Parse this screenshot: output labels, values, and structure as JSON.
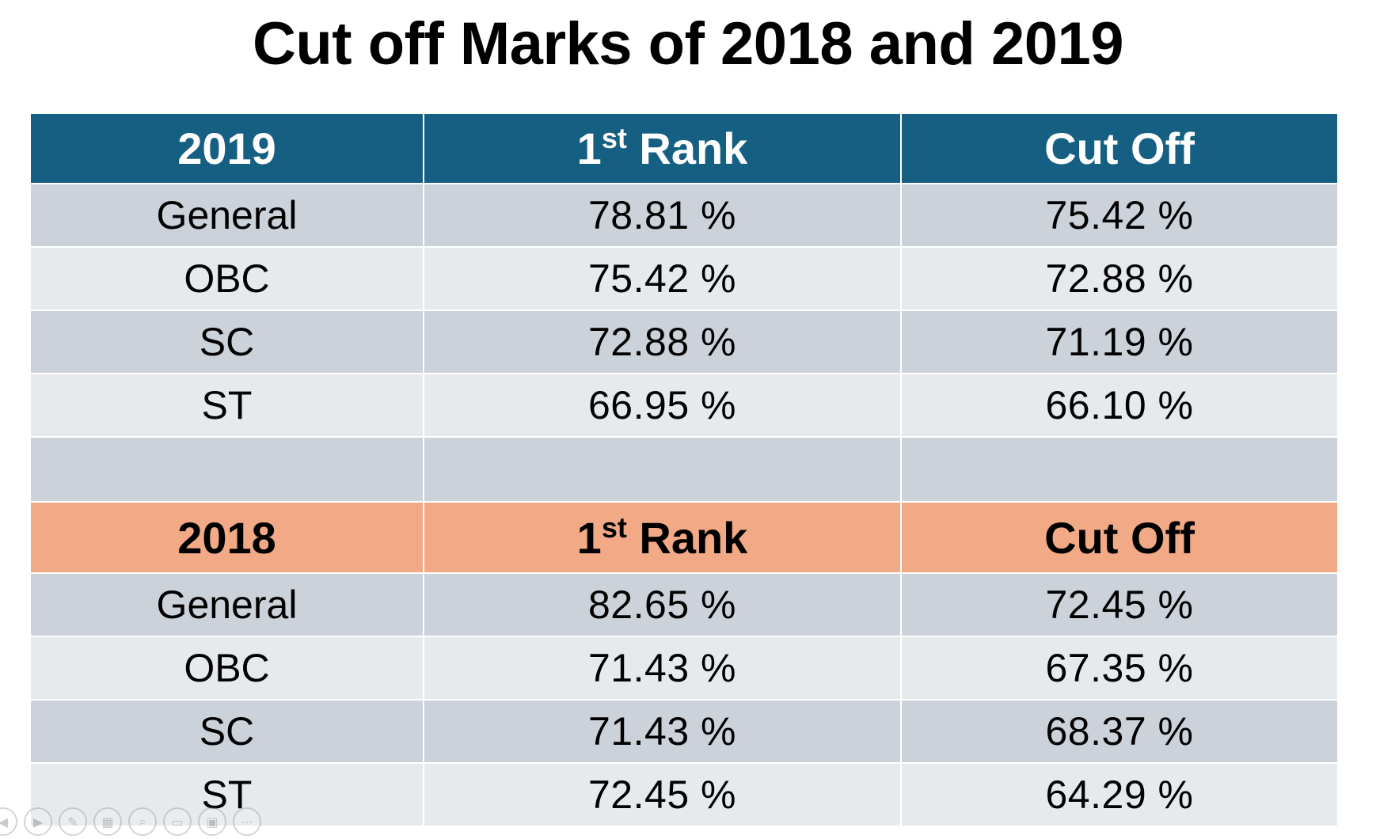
{
  "title": "Cut off Marks of 2018 and 2019",
  "colors": {
    "header_2019": "#156082",
    "header_2018": "#f2a985",
    "row_dark": "#ccd2da",
    "row_light": "#e7eaed"
  },
  "tables": [
    {
      "year": "2019",
      "header": {
        "rank_main": "1",
        "rank_sup": "st",
        "rank_text": " Rank",
        "cutoff": "Cut Off"
      },
      "rows": [
        {
          "category": "General",
          "first_rank": "78.81 %",
          "cut_off": "75.42 %"
        },
        {
          "category": "OBC",
          "first_rank": "75.42 %",
          "cut_off": "72.88 %"
        },
        {
          "category": "SC",
          "first_rank": "72.88 %",
          "cut_off": "71.19 %"
        },
        {
          "category": "ST",
          "first_rank": "66.95 %",
          "cut_off": "66.10 %"
        }
      ]
    },
    {
      "year": "2018",
      "header": {
        "rank_main": "1",
        "rank_sup": "st",
        "rank_text": " Rank",
        "cutoff": "Cut Off"
      },
      "rows": [
        {
          "category": "General",
          "first_rank": "82.65 %",
          "cut_off": "72.45 %"
        },
        {
          "category": "OBC",
          "first_rank": "71.43 %",
          "cut_off": "67.35 %"
        },
        {
          "category": "SC",
          "first_rank": "71.43 %",
          "cut_off": "68.37 %"
        },
        {
          "category": "ST",
          "first_rank": "72.45 %",
          "cut_off": "64.29 %"
        }
      ]
    }
  ],
  "slideshow_controls": [
    {
      "name": "previous-icon",
      "glyph": "◀"
    },
    {
      "name": "next-icon",
      "glyph": "▶"
    },
    {
      "name": "pen-icon",
      "glyph": "✎"
    },
    {
      "name": "see-all-slides-icon",
      "glyph": "▦"
    },
    {
      "name": "zoom-icon",
      "glyph": "⌕"
    },
    {
      "name": "subtitles-icon",
      "glyph": "▭"
    },
    {
      "name": "camera-icon",
      "glyph": "▣"
    },
    {
      "name": "more-options-icon",
      "glyph": "⋯"
    }
  ]
}
